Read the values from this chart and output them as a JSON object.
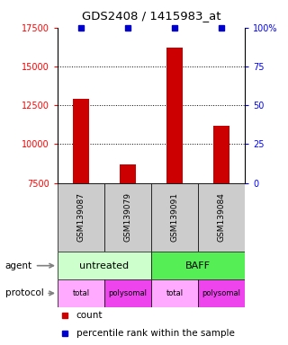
{
  "title": "GDS2408 / 1415983_at",
  "samples": [
    "GSM139087",
    "GSM139079",
    "GSM139091",
    "GSM139084"
  ],
  "counts": [
    12900,
    8700,
    16200,
    11200
  ],
  "ylim": [
    7500,
    17500
  ],
  "yticks": [
    7500,
    10000,
    12500,
    15000,
    17500
  ],
  "right_yticks": [
    0,
    25,
    50,
    75,
    100
  ],
  "right_yticklabels": [
    "0",
    "25",
    "50",
    "75",
    "100%"
  ],
  "bar_color": "#cc0000",
  "dot_color": "#0000cc",
  "bar_width": 0.35,
  "agent_labels": [
    "untreated",
    "BAFF"
  ],
  "agent_colors": [
    "#ccffcc",
    "#55ee55"
  ],
  "protocol_labels": [
    "total",
    "polysomal",
    "total",
    "polysomal"
  ],
  "protocol_colors": [
    "#ffaaff",
    "#ee44ee",
    "#ffaaff",
    "#ee44ee"
  ],
  "sample_bg": "#cccccc",
  "plot_bg": "#ffffff",
  "grid_dotted_at": [
    10000,
    12500,
    15000
  ],
  "legend_items": [
    {
      "color": "#cc0000",
      "label": "count"
    },
    {
      "color": "#0000cc",
      "label": "percentile rank within the sample"
    }
  ]
}
